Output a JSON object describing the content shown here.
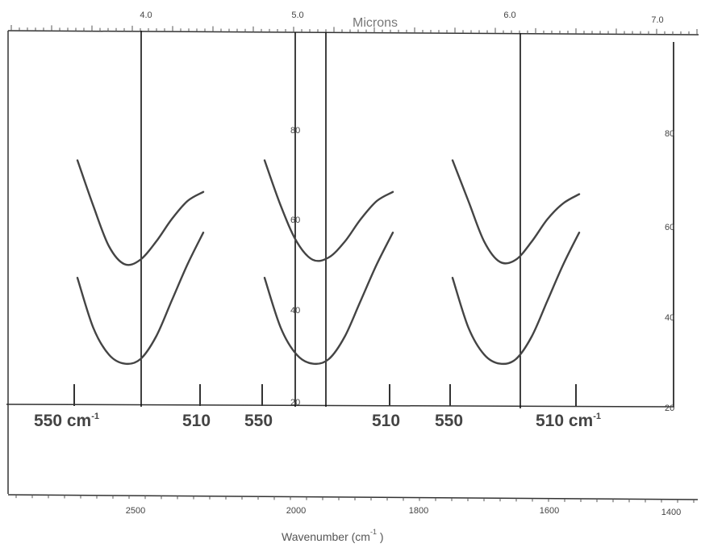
{
  "chart_data": {
    "type": "line",
    "top_axis": {
      "title": "Microns",
      "ticks": [
        "4.0",
        "5.0",
        "6.0",
        "7.0"
      ]
    },
    "bottom_axis": {
      "ticks": [
        "2500",
        "2000",
        "1800",
        "1600",
        "1400"
      ]
    },
    "right_axis": {
      "ticks": [
        "80",
        "60",
        "40",
        "20"
      ],
      "ylim": [
        20,
        80
      ]
    },
    "inner_ticks": [
      "80",
      "60",
      "40",
      "20"
    ],
    "xlabel": "Wavenumber (cm",
    "xlabel_sup": "-1",
    "xlabel_end": " )",
    "sweep_labels": [
      "550 cm",
      "510",
      "550",
      "510",
      "550",
      "510 cm"
    ],
    "sweep_label_sup": "-1",
    "panels": [
      {
        "scale_marks": [
          "550",
          "510"
        ],
        "series": [
          {
            "x": [
              550,
              545,
              540,
              535,
              530,
              525,
              520,
              515,
              510
            ],
            "y": [
              74.0,
              64.0,
              55.0,
              51.0,
              52.0,
              56.0,
              61.0,
              65.0,
              67.0
            ]
          },
          {
            "x": [
              550,
              545,
              540,
              535,
              530,
              525,
              520,
              515,
              510
            ],
            "y": [
              48.0,
              37.0,
              31.0,
              29.0,
              30.0,
              35.0,
              43.0,
              51.0,
              58.0
            ]
          }
        ]
      },
      {
        "scale_marks": [
          "550",
          "510"
        ],
        "series": [
          {
            "x": [
              550,
              545,
              540,
              535,
              530,
              525,
              520,
              515,
              510
            ],
            "y": [
              74.0,
              64.0,
              56.0,
              52.0,
              52.5,
              56.0,
              61.0,
              65.0,
              67.0
            ]
          },
          {
            "x": [
              550,
              545,
              540,
              535,
              530,
              525,
              520,
              515,
              510
            ],
            "y": [
              48.0,
              37.0,
              31.0,
              29.0,
              30.0,
              35.0,
              43.0,
              51.0,
              58.0
            ]
          }
        ]
      },
      {
        "scale_marks": [
          "550",
          "510"
        ],
        "series": [
          {
            "x": [
              550,
              545,
              540,
              535,
              530,
              525,
              520,
              515,
              510
            ],
            "y": [
              74.0,
              65.0,
              56.0,
              51.5,
              52.0,
              56.0,
              61.0,
              64.5,
              66.5
            ]
          },
          {
            "x": [
              550,
              545,
              540,
              535,
              530,
              525,
              520,
              515,
              510
            ],
            "y": [
              48.0,
              37.0,
              31.0,
              29.0,
              30.0,
              35.0,
              43.0,
              51.0,
              58.0
            ]
          }
        ]
      }
    ]
  }
}
